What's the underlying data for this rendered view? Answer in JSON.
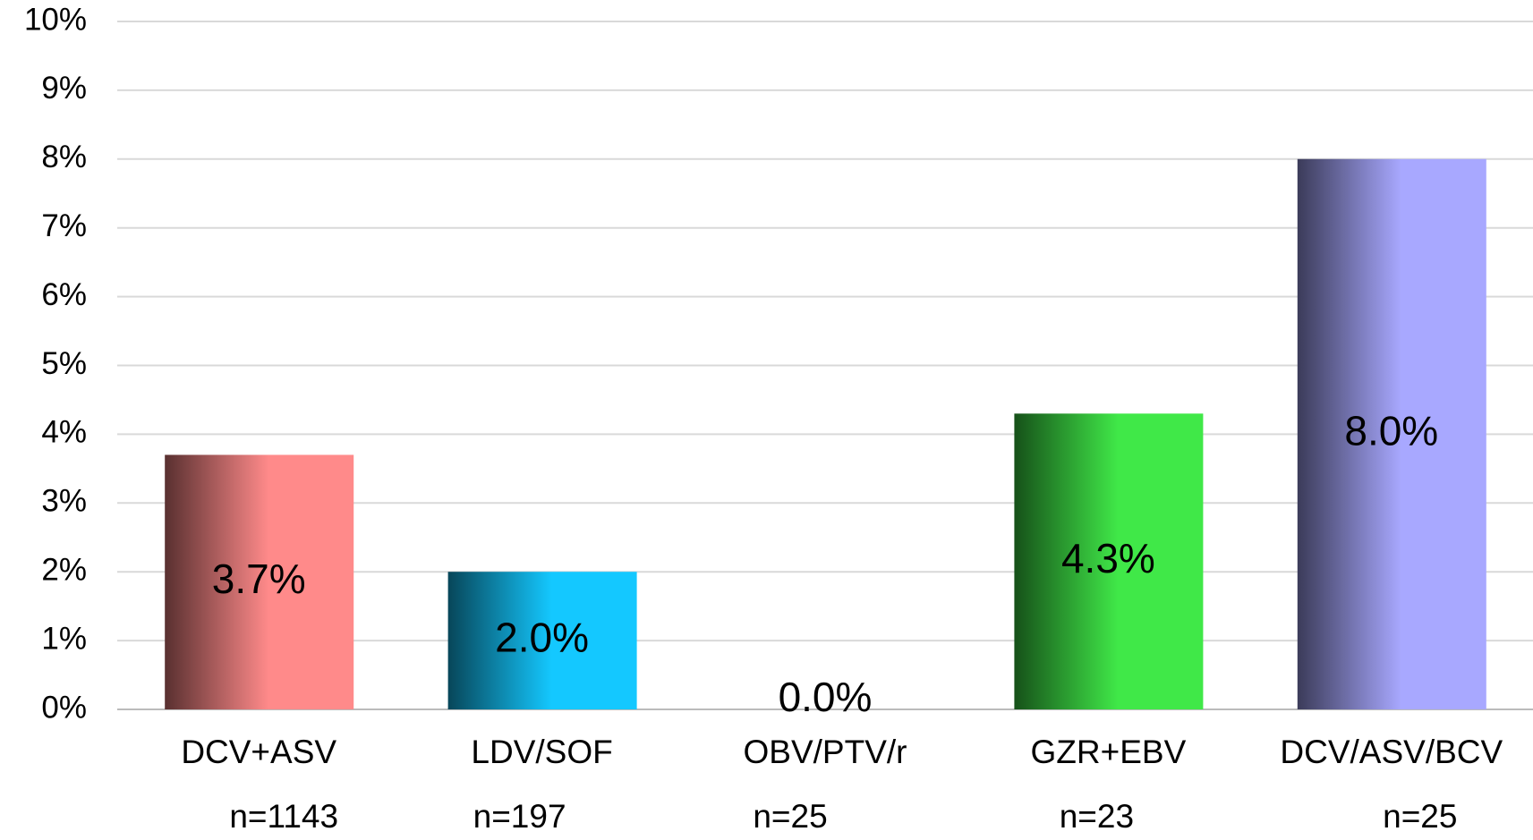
{
  "chart_data": {
    "type": "bar",
    "categories": [
      "DCV+ASV",
      "LDV/SOF",
      "OBV/PTV/r",
      "GZR+EBV",
      "DCV/ASV/BCV"
    ],
    "sample_sizes": [
      "n=1143",
      "n=197",
      "n=25",
      "n=23",
      "n=25"
    ],
    "values": [
      3.7,
      2.0,
      0.0,
      4.3,
      8.0
    ],
    "value_labels": [
      "3.7%",
      "2.0%",
      "0.0%",
      "4.3%",
      "8.0%"
    ],
    "colors": [
      "#ff8a8a",
      "#14c8ff",
      "#888888",
      "#40e848",
      "#a8a8ff"
    ],
    "ylim": [
      0,
      10
    ],
    "yticks": [
      {
        "value": 0,
        "label": "0%"
      },
      {
        "value": 1,
        "label": "1%"
      },
      {
        "value": 2,
        "label": "2%"
      },
      {
        "value": 3,
        "label": "3%"
      },
      {
        "value": 4,
        "label": "4%"
      },
      {
        "value": 5,
        "label": "5%"
      },
      {
        "value": 6,
        "label": "6%"
      },
      {
        "value": 7,
        "label": "7%"
      },
      {
        "value": 8,
        "label": "8%"
      },
      {
        "value": 9,
        "label": "9%"
      },
      {
        "value": 10,
        "label": "10%"
      }
    ],
    "grid": true
  }
}
